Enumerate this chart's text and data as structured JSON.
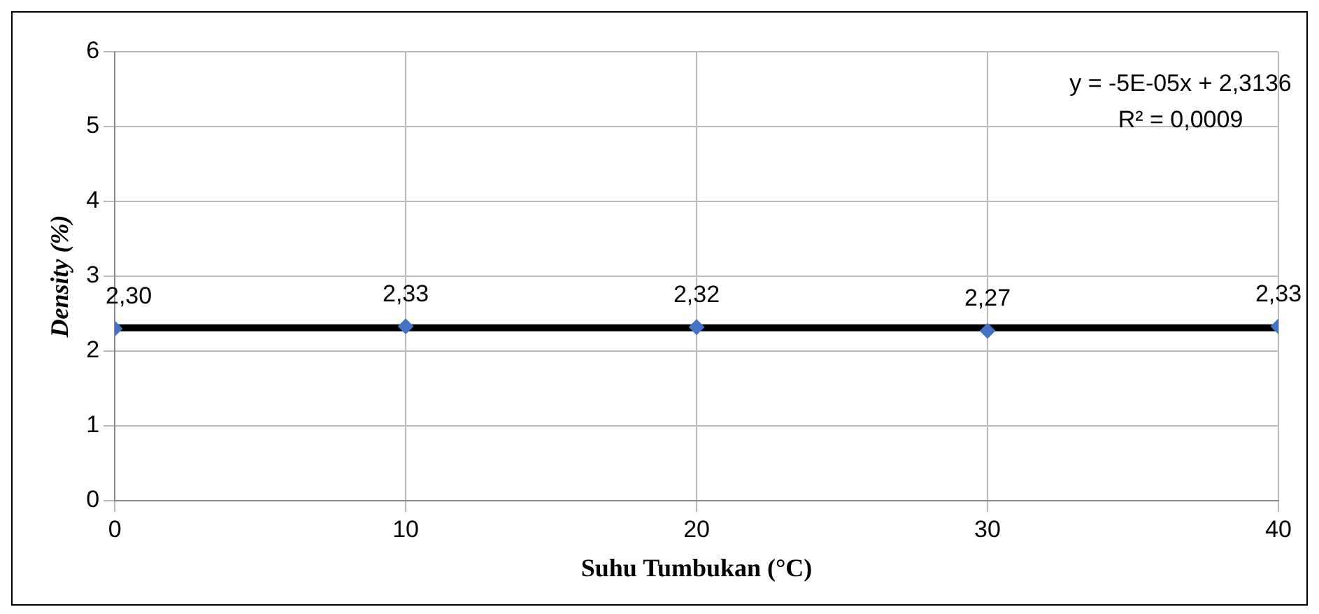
{
  "chart_data": {
    "type": "scatter",
    "xlabel": "Suhu Tumbukan (°C)",
    "ylabel": "Density (%)",
    "xlim": [
      0,
      40
    ],
    "xticks": [
      0,
      10,
      20,
      30,
      40
    ],
    "ylim": [
      0,
      6
    ],
    "yticks": [
      0,
      1,
      2,
      3,
      4,
      5,
      6
    ],
    "grid": true,
    "legend": false,
    "series": [
      {
        "color": "#4472c4",
        "marker": "diamond",
        "x": [
          0,
          10,
          20,
          30,
          40
        ],
        "values": [
          2.3,
          2.33,
          2.32,
          2.27,
          2.33
        ],
        "value_labels": [
          "2,30",
          "2,33",
          "2,32",
          "2,27",
          "2,33"
        ]
      },
      {
        "type": "line",
        "color": "#000000",
        "marker": "none",
        "x": [
          0,
          40
        ],
        "values": [
          2.31,
          2.31
        ]
      }
    ],
    "annotations": [
      "y = -5E-05x + 2,3136",
      "R² = 0,0009"
    ]
  }
}
